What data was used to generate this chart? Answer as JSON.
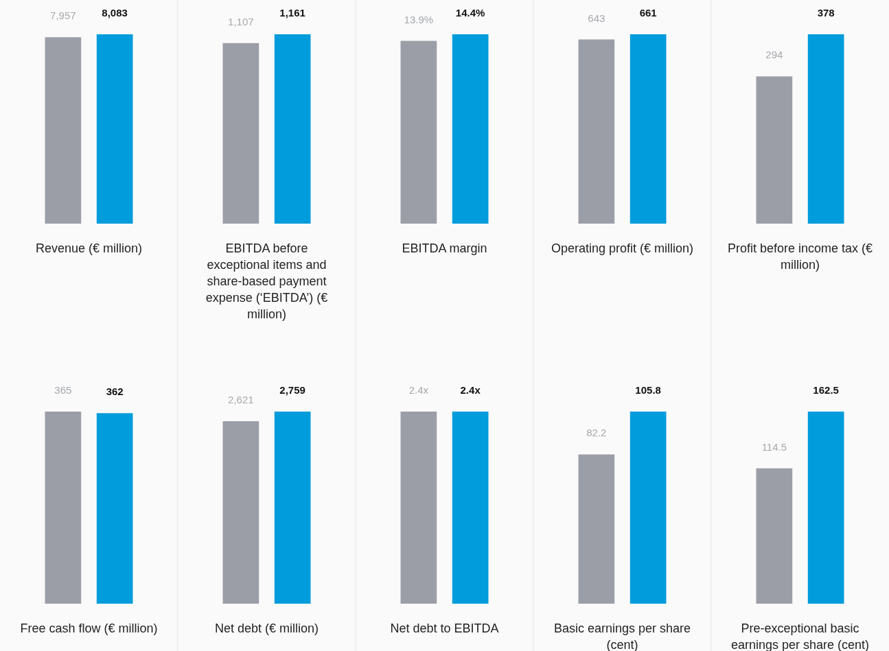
{
  "chart_data": [
    {
      "type": "bar",
      "title": "Revenue (€ million)",
      "categories": [
        null,
        null
      ],
      "values": [
        7957,
        8083
      ],
      "value_labels": [
        "7,957",
        "8,083"
      ],
      "colors": [
        "#9b9ea6",
        "#009cdc"
      ]
    },
    {
      "type": "bar",
      "title": "EBITDA before exceptional items and share-based payment expense (‘EBITDA’) (€ million)",
      "categories": [
        null,
        null
      ],
      "values": [
        1107,
        1161
      ],
      "value_labels": [
        "1,107",
        "1,161"
      ],
      "colors": [
        "#9b9ea6",
        "#009cdc"
      ]
    },
    {
      "type": "bar",
      "title": "EBITDA margin",
      "categories": [
        null,
        null
      ],
      "values": [
        13.9,
        14.4
      ],
      "value_labels": [
        "13.9%",
        "14.4%"
      ],
      "colors": [
        "#9b9ea6",
        "#009cdc"
      ]
    },
    {
      "type": "bar",
      "title": "Operating profit (€ million)",
      "categories": [
        null,
        null
      ],
      "values": [
        643,
        661
      ],
      "value_labels": [
        "643",
        "661"
      ],
      "colors": [
        "#9b9ea6",
        "#009cdc"
      ]
    },
    {
      "type": "bar",
      "title": "Profit before income tax (€ million)",
      "categories": [
        null,
        null
      ],
      "values": [
        294,
        378
      ],
      "value_labels": [
        "294",
        "378"
      ],
      "colors": [
        "#9b9ea6",
        "#009cdc"
      ]
    },
    {
      "type": "bar",
      "title": "Free cash flow (€ million)",
      "categories": [
        null,
        null
      ],
      "values": [
        365,
        362
      ],
      "value_labels": [
        "365",
        "362"
      ],
      "colors": [
        "#9b9ea6",
        "#009cdc"
      ]
    },
    {
      "type": "bar",
      "title": "Net debt (€ million)",
      "categories": [
        null,
        null
      ],
      "values": [
        2621,
        2759
      ],
      "value_labels": [
        "2,621",
        "2,759"
      ],
      "colors": [
        "#9b9ea6",
        "#009cdc"
      ]
    },
    {
      "type": "bar",
      "title": "Net debt to EBITDA",
      "categories": [
        null,
        null
      ],
      "values": [
        2.4,
        2.4
      ],
      "value_labels": [
        "2.4x",
        "2.4x"
      ],
      "colors": [
        "#9b9ea6",
        "#009cdc"
      ]
    },
    {
      "type": "bar",
      "title": "Basic earnings per share (cent)",
      "categories": [
        null,
        null
      ],
      "values": [
        82.2,
        105.8
      ],
      "value_labels": [
        "82.2",
        "105.8"
      ],
      "colors": [
        "#9b9ea6",
        "#009cdc"
      ]
    },
    {
      "type": "bar",
      "title": "Pre-exceptional basic earnings per share (cent)",
      "categories": [
        null,
        null
      ],
      "values": [
        114.5,
        162.5
      ],
      "value_labels": [
        "114.5",
        "162.5"
      ],
      "colors": [
        "#9b9ea6",
        "#009cdc"
      ]
    }
  ]
}
